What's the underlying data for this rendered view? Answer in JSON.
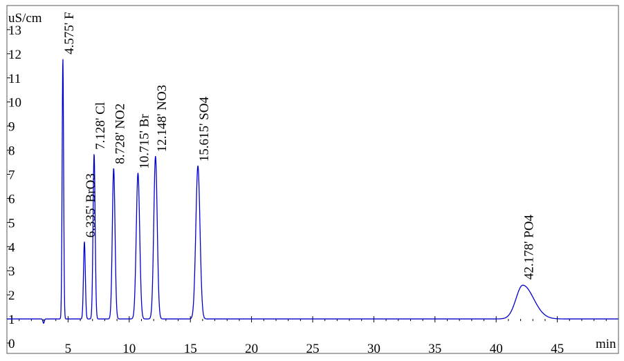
{
  "chart_data": {
    "type": "line",
    "ylabel": "uS/cm",
    "xlabel": "min",
    "xlim": [
      0,
      50
    ],
    "ylim": [
      0,
      14
    ],
    "x_ticks": [
      5,
      10,
      15,
      20,
      25,
      30,
      35,
      40,
      45
    ],
    "x_tick_labels": [
      "5",
      "10",
      "15",
      "20",
      "25",
      "30",
      "35",
      "40",
      "45"
    ],
    "y_ticks": [
      0,
      1,
      2,
      3,
      4,
      5,
      6,
      7,
      8,
      9,
      10,
      11,
      12,
      13
    ],
    "y_tick_labels": [
      "0",
      "1",
      "2",
      "3",
      "4",
      "5",
      "6",
      "7",
      "8",
      "9",
      "10",
      "11",
      "12",
      "13"
    ],
    "baseline": 1.0,
    "grid": false,
    "line_color": "#0000cc",
    "peaks": [
      {
        "retention": 4.575,
        "height": 11.8,
        "label": "4.575'  F"
      },
      {
        "retention": 6.335,
        "height": 4.2,
        "label": "6.335'  BrO3"
      },
      {
        "retention": 7.128,
        "height": 7.85,
        "label": "7.128'  Cl"
      },
      {
        "retention": 8.728,
        "height": 7.25,
        "label": "8.728'  NO2"
      },
      {
        "retention": 10.715,
        "height": 7.05,
        "label": "10.715'  Br"
      },
      {
        "retention": 12.148,
        "height": 7.75,
        "label": "12.148'  NO3"
      },
      {
        "retention": 15.615,
        "height": 7.35,
        "label": "15.615'  SO4"
      },
      {
        "retention": 42.178,
        "height": 2.4,
        "label": "42.178'  PO4"
      }
    ]
  }
}
